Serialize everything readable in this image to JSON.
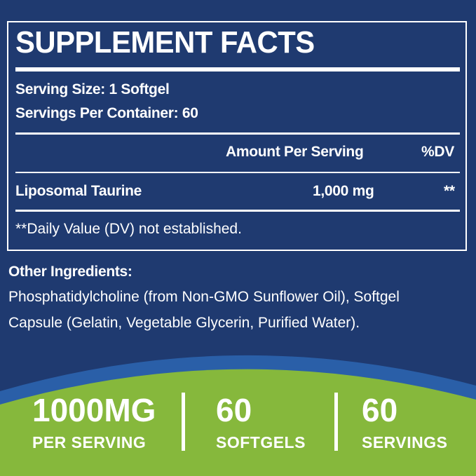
{
  "colors": {
    "navy": "#1f3a70",
    "band": "#2a5fa8",
    "green": "#86b83c"
  },
  "facts": {
    "title": "SUPPLEMENT FACTS",
    "serving_size": "Serving Size: 1 Softgel",
    "servings_per_container": "Servings Per Container: 60",
    "amount_header": "Amount Per Serving",
    "dv_header": "%DV",
    "rows": [
      {
        "name": "Liposomal Taurine",
        "amount": "1,000 mg",
        "dv": "**"
      }
    ],
    "footnote": "**Daily Value (DV) not established."
  },
  "other_ingredients": {
    "label": "Other Ingredients:",
    "line1": "Phosphatidylcholine (from Non-GMO Sunflower Oil), Softgel",
    "line2": "Capsule (Gelatin, Vegetable Glycerin, Purified Water)."
  },
  "stats": [
    {
      "value": "1000MG",
      "label": "PER SERVING"
    },
    {
      "value": "60",
      "label": "SOFTGELS"
    },
    {
      "value": "60",
      "label": "SERVINGS"
    }
  ]
}
